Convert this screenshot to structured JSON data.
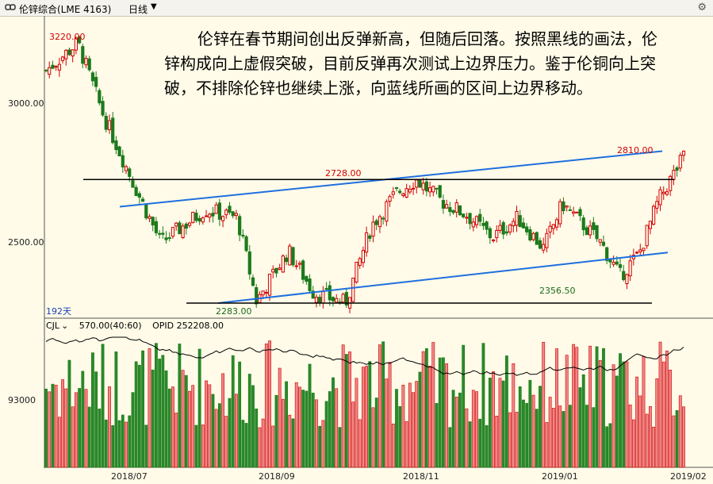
{
  "header": {
    "instrument": "伦锌综合(LME 4163)",
    "period": "日线",
    "icons": [
      "link-icon",
      "chevron-down-icon",
      "settings-icon"
    ]
  },
  "price_axis": [
    "3000.00",
    "2500.00"
  ],
  "volume_axis": [
    "93000"
  ],
  "time_axis": [
    "2018/07",
    "2018/09",
    "2018/11",
    "2019/01",
    "2019/02"
  ],
  "annotation_text": "伦锌在春节期间创出反弹新高，但随后回落。按照黑线的画法，伦锌构成向上虚假突破，目前反弹再次测试上边界压力。鉴于伦铜向上突破，不排除伦锌也继续上涨，向蓝线所画的区间上边界移动。",
  "price_labels": {
    "high_start": "3220.00",
    "mid_high": "2728.00",
    "recent_high": "2810.00",
    "low_1": "2283.00",
    "low_2": "2356.50"
  },
  "period_days": "192天",
  "indicator": {
    "name": "CJL",
    "value": "570.00(40:60)",
    "opid": "OPID 252208.00"
  },
  "colors": {
    "up": "#d20000",
    "down": "#1c7a1c",
    "trend": "#1e6fe0",
    "level": "#000000",
    "bg": "#fffbe8"
  },
  "chart_data": [
    {
      "type": "candlestick",
      "title": "伦锌综合(LME 4163)",
      "y_ticks": [
        3000,
        2500
      ],
      "x_ticks": [
        "2018/07",
        "2018/09",
        "2018/11",
        "2019/01",
        "2019/02"
      ],
      "close_path": [
        {
          "x": 0.0,
          "y": 3120
        },
        {
          "x": 0.05,
          "y": 3220
        },
        {
          "x": 0.09,
          "y": 2960
        },
        {
          "x": 0.14,
          "y": 2700
        },
        {
          "x": 0.18,
          "y": 2500
        },
        {
          "x": 0.25,
          "y": 2620
        },
        {
          "x": 0.3,
          "y": 2590
        },
        {
          "x": 0.33,
          "y": 2290
        },
        {
          "x": 0.38,
          "y": 2470
        },
        {
          "x": 0.42,
          "y": 2320
        },
        {
          "x": 0.47,
          "y": 2283
        },
        {
          "x": 0.51,
          "y": 2560
        },
        {
          "x": 0.55,
          "y": 2680
        },
        {
          "x": 0.58,
          "y": 2728
        },
        {
          "x": 0.62,
          "y": 2650
        },
        {
          "x": 0.66,
          "y": 2600
        },
        {
          "x": 0.7,
          "y": 2520
        },
        {
          "x": 0.74,
          "y": 2590
        },
        {
          "x": 0.78,
          "y": 2480
        },
        {
          "x": 0.81,
          "y": 2640
        },
        {
          "x": 0.87,
          "y": 2500
        },
        {
          "x": 0.9,
          "y": 2380
        },
        {
          "x": 0.93,
          "y": 2460
        },
        {
          "x": 0.96,
          "y": 2650
        },
        {
          "x": 1.0,
          "y": 2810
        }
      ],
      "lines": {
        "blue_upper": [
          {
            "x": 0.0,
            "y": 2630
          },
          {
            "x": 1.0,
            "y": 2830
          }
        ],
        "blue_lower": [
          {
            "x": 0.27,
            "y": 2283
          },
          {
            "x": 1.0,
            "y": 2465
          }
        ],
        "black_upper": {
          "y": 2728
        },
        "black_lower": {
          "y": 2283
        }
      }
    },
    {
      "type": "bar",
      "title": "CJL",
      "y_ticks": [
        93000
      ],
      "note": "daily volume bars (red up / green down) with open interest line"
    }
  ]
}
